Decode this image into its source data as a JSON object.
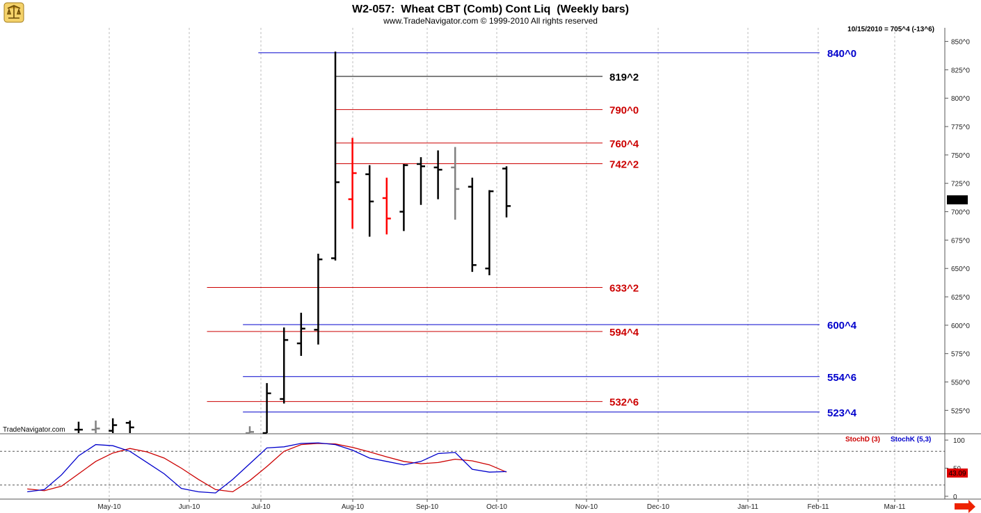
{
  "chart_data": [
    {
      "type": "ohlc",
      "title": "W2-057:  Wheat CBT (Comb) Cont Liq  (Weekly bars)",
      "subtitle": "www.TradeNavigator.com © 1999-2010 All rights reserved",
      "status": "10/15/2010 = 705^4 (-13^6)",
      "watermark": "TradeNavigator.com",
      "last_price_label": "705^4",
      "ylim": [
        505,
        862
      ],
      "y_ticks": [
        {
          "value": 525,
          "label": "525^0"
        },
        {
          "value": 550,
          "label": "550^0"
        },
        {
          "value": 575,
          "label": "575^0"
        },
        {
          "value": 600,
          "label": "600^0"
        },
        {
          "value": 625,
          "label": "625^0"
        },
        {
          "value": 650,
          "label": "650^0"
        },
        {
          "value": 675,
          "label": "675^0"
        },
        {
          "value": 700,
          "label": "700^0"
        },
        {
          "value": 725,
          "label": "725^0"
        },
        {
          "value": 750,
          "label": "750^0"
        },
        {
          "value": 775,
          "label": "775^0"
        },
        {
          "value": 800,
          "label": "800^0"
        },
        {
          "value": 825,
          "label": "825^0"
        },
        {
          "value": 850,
          "label": "850^0"
        }
      ],
      "x_ticks": [
        "May-10",
        "Jun-10",
        "Jul-10",
        "Aug-10",
        "Sep-10",
        "Oct-10",
        "Nov-10",
        "Dec-10",
        "Jan-11",
        "Feb-11",
        "Mar-11"
      ],
      "bars": [
        {
          "week": 0,
          "open": 508,
          "high": 515,
          "low": 505,
          "close": 508,
          "color": "#000000"
        },
        {
          "week": 1,
          "open": 508,
          "high": 516,
          "low": 505,
          "close": 509,
          "color": "#808080"
        },
        {
          "week": 2,
          "open": 507,
          "high": 518,
          "low": 505,
          "close": 512,
          "color": "#000000"
        },
        {
          "week": 3,
          "open": 514,
          "high": 516,
          "low": 505,
          "close": 510,
          "color": "#000000"
        },
        {
          "week": 10,
          "open": 505,
          "high": 511,
          "low": 505,
          "close": 506,
          "color": "#808080"
        },
        {
          "week": 11,
          "open": 505,
          "high": 549,
          "low": 505,
          "close": 540,
          "color": "#000000"
        },
        {
          "week": 12,
          "open": 535,
          "high": 598,
          "low": 531,
          "close": 587,
          "color": "#000000"
        },
        {
          "week": 13,
          "open": 584,
          "high": 611,
          "low": 573,
          "close": 597,
          "color": "#000000"
        },
        {
          "week": 14,
          "open": 596,
          "high": 663,
          "low": 583,
          "close": 658,
          "color": "#000000"
        },
        {
          "week": 15,
          "open": 659,
          "high": 841,
          "low": 657,
          "close": 726,
          "color": "#000000"
        },
        {
          "week": 16,
          "open": 711,
          "high": 765,
          "low": 685,
          "close": 734,
          "color": "#ff0000"
        },
        {
          "week": 17,
          "open": 733,
          "high": 741,
          "low": 678,
          "close": 709,
          "color": "#000000"
        },
        {
          "week": 18,
          "open": 712,
          "high": 730,
          "low": 680,
          "close": 694,
          "color": "#ff0000"
        },
        {
          "week": 19,
          "open": 700,
          "high": 742,
          "low": 683,
          "close": 741,
          "color": "#000000"
        },
        {
          "week": 20,
          "open": 742,
          "high": 748,
          "low": 706,
          "close": 740,
          "color": "#000000"
        },
        {
          "week": 21,
          "open": 739,
          "high": 754,
          "low": 711,
          "close": 737,
          "color": "#000000"
        },
        {
          "week": 22,
          "open": 739,
          "high": 757,
          "low": 693,
          "close": 720,
          "color": "#808080"
        },
        {
          "week": 23,
          "open": 722,
          "high": 730,
          "low": 647,
          "close": 653,
          "color": "#000000"
        },
        {
          "week": 24,
          "open": 650,
          "high": 719,
          "low": 644,
          "close": 718,
          "color": "#000000"
        },
        {
          "week": 25,
          "open": 738,
          "high": 740,
          "low": 695,
          "close": 705,
          "color": "#000000"
        }
      ],
      "levels": [
        {
          "label": "840^0",
          "value": 840,
          "color": "#0000cc",
          "from_week": 10.5,
          "to": "full"
        },
        {
          "label": "819^2",
          "value": 819.25,
          "color": "#000000",
          "from_week": 15,
          "to": "mid"
        },
        {
          "label": "790^0",
          "value": 790,
          "color": "#cc0000",
          "from_week": 15,
          "to": "mid"
        },
        {
          "label": "760^4",
          "value": 760.5,
          "color": "#cc0000",
          "from_week": 15,
          "to": "mid"
        },
        {
          "label": "742^2",
          "value": 742.25,
          "color": "#cc0000",
          "from_week": 15,
          "to": "mid"
        },
        {
          "label": "633^2",
          "value": 633.25,
          "color": "#cc0000",
          "from_week": 7.5,
          "to": "mid"
        },
        {
          "label": "600^4",
          "value": 600.5,
          "color": "#0000cc",
          "from_week": 9.6,
          "to": "full"
        },
        {
          "label": "594^4",
          "value": 594.5,
          "color": "#cc0000",
          "from_week": 7.5,
          "to": "mid"
        },
        {
          "label": "554^6",
          "value": 554.75,
          "color": "#0000cc",
          "from_week": 9.6,
          "to": "full"
        },
        {
          "label": "532^6",
          "value": 532.75,
          "color": "#cc0000",
          "from_week": 7.5,
          "to": "mid"
        },
        {
          "label": "523^4",
          "value": 523.5,
          "color": "#0000cc",
          "from_week": 9.6,
          "to": "full"
        }
      ]
    },
    {
      "type": "line",
      "ylim": [
        -5,
        110
      ],
      "y_ticks": [
        {
          "value": 100,
          "label": "100"
        },
        {
          "value": 50,
          "label": "50"
        },
        {
          "value": 0,
          "label": "0"
        }
      ],
      "ref_lines": [
        80,
        20
      ],
      "last_value_label": "43.09",
      "series": [
        {
          "name": "StochD (3)",
          "color": "#cc0000",
          "x": [
            -3,
            -2,
            -1,
            0,
            1,
            2,
            3,
            4,
            5,
            6,
            7,
            8,
            9,
            10,
            11,
            12,
            13,
            14,
            15,
            16,
            17,
            18,
            19,
            20,
            21,
            22,
            23,
            24,
            25
          ],
          "values": [
            13,
            10,
            18,
            40,
            62,
            77,
            85,
            79,
            68,
            50,
            30,
            12,
            8,
            28,
            53,
            80,
            92,
            94,
            93,
            87,
            79,
            70,
            62,
            58,
            60,
            66,
            63,
            56,
            43
          ]
        },
        {
          "name": "StochK (5,3)",
          "color": "#0000cc",
          "x": [
            -3,
            -2,
            -1,
            0,
            1,
            2,
            3,
            4,
            5,
            6,
            7,
            8,
            9,
            10,
            11,
            12,
            13,
            14,
            15,
            16,
            17,
            18,
            19,
            20,
            21,
            22,
            23,
            24,
            25
          ],
          "values": [
            8,
            12,
            38,
            72,
            92,
            90,
            80,
            60,
            40,
            14,
            8,
            6,
            30,
            58,
            86,
            88,
            94,
            95,
            92,
            82,
            68,
            62,
            56,
            62,
            76,
            78,
            48,
            43,
            44
          ]
        }
      ]
    }
  ]
}
